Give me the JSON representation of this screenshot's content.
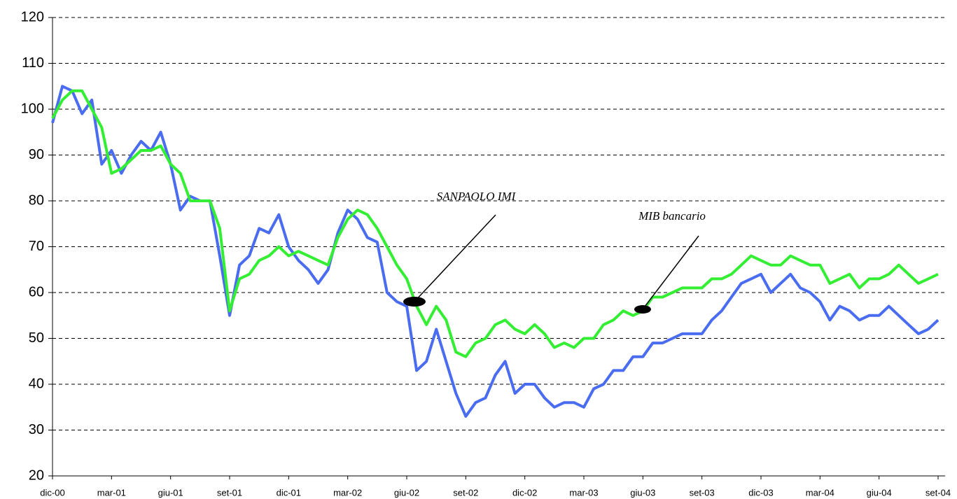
{
  "chart_data": {
    "type": "line",
    "x": [
      0,
      0.5,
      1,
      1.5,
      2,
      2.5,
      3,
      3.5,
      4,
      4.5,
      5,
      5.5,
      6,
      6.5,
      7,
      7.5,
      8,
      8.5,
      9,
      9.5,
      10,
      10.5,
      11,
      11.5,
      12,
      12.5,
      13,
      13.5,
      14,
      14.5,
      15,
      15.5,
      16,
      16.5,
      17,
      17.5,
      18,
      18.5,
      19,
      19.5,
      20,
      20.5,
      21,
      21.5,
      22,
      22.5,
      23,
      23.5,
      24,
      24.5,
      25,
      25.5,
      26,
      26.5,
      27,
      27.5,
      28,
      28.5,
      29,
      29.5,
      30,
      30.5,
      31,
      31.5,
      32,
      32.5,
      33,
      33.5,
      34,
      34.5,
      35,
      35.5,
      36,
      36.5,
      37,
      37.5,
      38,
      38.5,
      39,
      39.5,
      40,
      40.5,
      41,
      41.5,
      42,
      42.5,
      43,
      43.5,
      44,
      44.5,
      45
    ],
    "series": [
      {
        "name": "SANPAOLO IMI",
        "color": "#4a6cf0",
        "values": [
          97,
          105,
          104,
          99,
          102,
          88,
          91,
          86,
          90,
          93,
          91,
          95,
          88,
          78,
          81,
          80,
          80,
          68,
          55,
          66,
          68,
          74,
          73,
          77,
          70,
          67,
          65,
          62,
          65,
          73,
          78,
          76,
          72,
          71,
          60,
          58,
          57,
          43,
          45,
          52,
          45,
          38,
          33,
          36,
          37,
          42,
          45,
          38,
          40,
          40,
          37,
          35,
          36,
          36,
          35,
          39,
          40,
          43,
          43,
          46,
          46,
          49,
          49,
          50,
          51,
          51,
          51,
          54,
          56,
          59,
          62,
          63,
          64,
          60,
          62,
          64,
          61,
          60,
          58,
          54,
          57,
          56,
          54,
          55,
          55,
          57,
          55,
          53,
          51,
          52,
          54
        ]
      },
      {
        "name": "MIB bancario",
        "color": "#33ee33",
        "values": [
          98,
          102,
          104,
          104,
          100,
          96,
          86,
          87,
          89,
          91,
          91,
          92,
          88,
          86,
          80,
          80,
          80,
          74,
          56,
          63,
          64,
          67,
          68,
          70,
          68,
          69,
          68,
          67,
          66,
          72,
          76,
          78,
          77,
          74,
          70,
          66,
          63,
          57,
          53,
          57,
          54,
          47,
          46,
          49,
          50,
          53,
          54,
          52,
          51,
          53,
          51,
          48,
          49,
          48,
          50,
          50,
          53,
          54,
          56,
          55,
          56,
          59,
          59,
          60,
          61,
          61,
          61,
          63,
          63,
          64,
          66,
          68,
          67,
          66,
          66,
          68,
          67,
          66,
          66,
          62,
          63,
          64,
          61,
          63,
          63,
          64,
          66,
          64,
          62,
          63,
          64
        ]
      }
    ],
    "xlim": [
      0,
      45
    ],
    "xticks": [
      {
        "value": 0,
        "label": "dic-00"
      },
      {
        "value": 3,
        "label": "mar-01"
      },
      {
        "value": 6,
        "label": "giu-01"
      },
      {
        "value": 9,
        "label": "set-01"
      },
      {
        "value": 12,
        "label": "dic-01"
      },
      {
        "value": 15,
        "label": "mar-02"
      },
      {
        "value": 18,
        "label": "giu-02"
      },
      {
        "value": 21,
        "label": "set-02"
      },
      {
        "value": 24,
        "label": "dic-02"
      },
      {
        "value": 27,
        "label": "mar-03"
      },
      {
        "value": 30,
        "label": "giu-03"
      },
      {
        "value": 33,
        "label": "set-03"
      },
      {
        "value": 36,
        "label": "dic-03"
      },
      {
        "value": 39,
        "label": "mar-04"
      },
      {
        "value": 42,
        "label": "giu-04"
      },
      {
        "value": 45,
        "label": "set-04"
      }
    ],
    "ylim": [
      20,
      120
    ],
    "yticks": [
      20,
      30,
      40,
      50,
      60,
      70,
      80,
      90,
      100,
      110,
      120
    ],
    "grid": true
  }
}
